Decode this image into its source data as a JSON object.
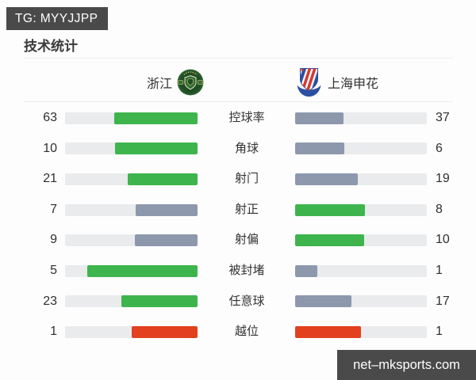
{
  "badge_top": {
    "label": "TG: MYYJJPP"
  },
  "page": {
    "title": "技术统计"
  },
  "teams": {
    "home": {
      "name": "浙江"
    },
    "away": {
      "name": "上海申花"
    }
  },
  "colors": {
    "green": "#3eb44c",
    "slate": "#8d98ad",
    "red": "#e2401f",
    "track": "#e9ebed",
    "badge_bg": "#4a4a4a",
    "crest_home_green": "#1f4d24",
    "crest_away_blue": "#2b4fa0",
    "crest_away_red": "#d23b33"
  },
  "stats": [
    {
      "label": "控球率",
      "home": 63,
      "away": 37,
      "home_color": "green",
      "away_color": "slate"
    },
    {
      "label": "角球",
      "home": 10,
      "away": 6,
      "home_color": "green",
      "away_color": "slate"
    },
    {
      "label": "射门",
      "home": 21,
      "away": 19,
      "home_color": "green",
      "away_color": "slate"
    },
    {
      "label": "射正",
      "home": 7,
      "away": 8,
      "home_color": "slate",
      "away_color": "green"
    },
    {
      "label": "射偏",
      "home": 9,
      "away": 10,
      "home_color": "slate",
      "away_color": "green"
    },
    {
      "label": "被封堵",
      "home": 5,
      "away": 1,
      "home_color": "green",
      "away_color": "slate"
    },
    {
      "label": "任意球",
      "home": 23,
      "away": 17,
      "home_color": "green",
      "away_color": "slate"
    },
    {
      "label": "越位",
      "home": 1,
      "away": 1,
      "home_color": "red",
      "away_color": "red"
    }
  ],
  "watermark_bottom": {
    "label": "net–mksports.com"
  },
  "chart_data": {
    "type": "bar",
    "title": "技术统计",
    "subtitle": "浙江 vs 上海申花",
    "categories": [
      "控球率",
      "角球",
      "射门",
      "射正",
      "射偏",
      "被封堵",
      "任意球",
      "越位"
    ],
    "series": [
      {
        "name": "浙江",
        "values": [
          63,
          10,
          21,
          7,
          9,
          5,
          23,
          1
        ]
      },
      {
        "name": "上海申花",
        "values": [
          37,
          6,
          19,
          8,
          10,
          1,
          17,
          1
        ]
      }
    ],
    "layout": "mirrored horizontal bars, labels centered, values at outer edges",
    "bar_fill_rule": "fill width = value / (home+away) of row",
    "color_rule": "leading side green #3eb44c, trailing side slate #8d98ad, 越位 row red #e2401f both sides",
    "legend_position": "top (team names with crests)",
    "grid": false
  }
}
